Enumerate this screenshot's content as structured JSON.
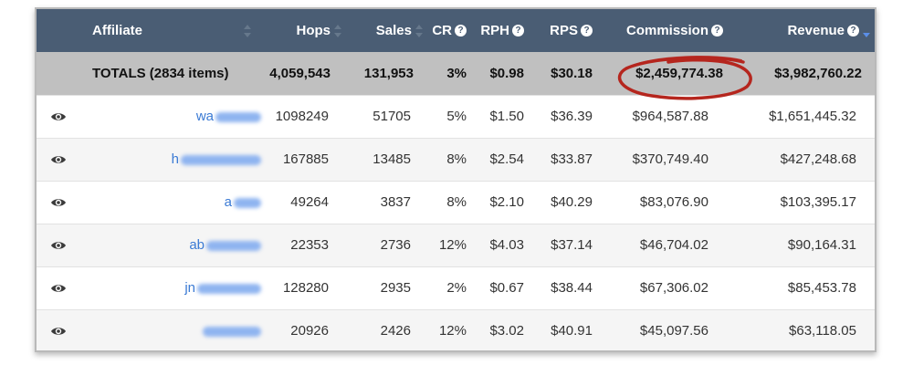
{
  "table": {
    "columns": [
      {
        "key": "eye",
        "label": ""
      },
      {
        "key": "affiliate",
        "label": "Affiliate",
        "help": false,
        "sort": "none"
      },
      {
        "key": "hops",
        "label": "Hops",
        "help": false,
        "sort": "none"
      },
      {
        "key": "sales",
        "label": "Sales",
        "help": false,
        "sort": "none"
      },
      {
        "key": "cr",
        "label": "CR",
        "help": true,
        "sort": "none"
      },
      {
        "key": "rph",
        "label": "RPH",
        "help": true,
        "sort": "none"
      },
      {
        "key": "rps",
        "label": "RPS",
        "help": true,
        "sort": "none"
      },
      {
        "key": "commission",
        "label": "Commission",
        "help": true,
        "sort": "none"
      },
      {
        "key": "revenue",
        "label": "Revenue",
        "help": true,
        "sort": "desc"
      }
    ],
    "help_glyph": "?",
    "totals": {
      "label": "TOTALS (2834 items)",
      "hops": "4,059,543",
      "sales": "131,953",
      "cr": "3%",
      "rph": "$0.98",
      "rps": "$30.18",
      "commission": "$2,459,774.38",
      "revenue": "$3,982,760.22"
    },
    "rows": [
      {
        "affiliate": "wa",
        "hops": "1098249",
        "sales": "51705",
        "cr": "5%",
        "rph": "$1.50",
        "rps": "$36.39",
        "commission": "$964,587.88",
        "revenue": "$1,651,445.32"
      },
      {
        "affiliate": "h",
        "hops": "167885",
        "sales": "13485",
        "cr": "8%",
        "rph": "$2.54",
        "rps": "$33.87",
        "commission": "$370,749.40",
        "revenue": "$427,248.68"
      },
      {
        "affiliate": "a",
        "hops": "49264",
        "sales": "3837",
        "cr": "8%",
        "rph": "$2.10",
        "rps": "$40.29",
        "commission": "$83,076.90",
        "revenue": "$103,395.17"
      },
      {
        "affiliate": "ab",
        "hops": "22353",
        "sales": "2736",
        "cr": "12%",
        "rph": "$4.03",
        "rps": "$37.14",
        "commission": "$46,704.02",
        "revenue": "$90,164.31"
      },
      {
        "affiliate": "jn",
        "hops": "128280",
        "sales": "2935",
        "cr": "2%",
        "rph": "$0.67",
        "rps": "$38.44",
        "commission": "$67,306.02",
        "revenue": "$85,453.78"
      },
      {
        "affiliate": "",
        "hops": "20926",
        "sales": "2426",
        "cr": "12%",
        "rph": "$3.02",
        "rps": "$40.91",
        "commission": "$45,097.56",
        "revenue": "$63,118.05"
      }
    ]
  },
  "colors": {
    "header_bg": "#4a5d74",
    "totals_bg": "#c0c0c0",
    "link": "#3a7ad4",
    "annotation": "#b5261e",
    "active_sort": "#5b8fe8"
  },
  "icons": {
    "row_action": "eye-icon",
    "annotation": "hand-drawn-circle-annotation"
  }
}
